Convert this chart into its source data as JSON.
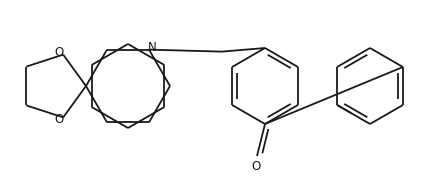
{
  "bg_color": "#ffffff",
  "line_color": "#1a1a1a",
  "line_width": 1.3,
  "figsize": [
    4.34,
    1.79
  ],
  "dpi": 100,
  "xlim": [
    0,
    434
  ],
  "ylim": [
    0,
    179
  ]
}
